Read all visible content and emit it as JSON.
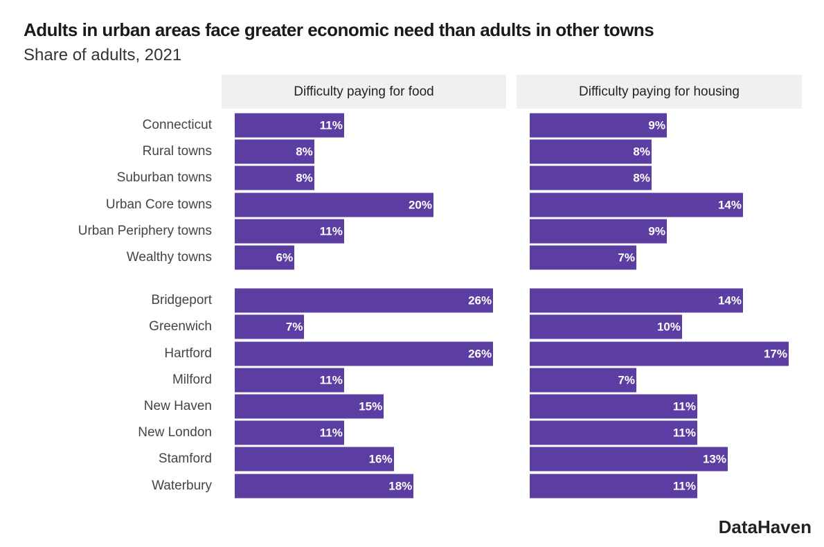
{
  "title": "Adults in urban areas face greater economic need than adults in other towns",
  "subtitle": "Share of adults, 2021",
  "logo": "DataHaven",
  "chart_data": {
    "type": "bar",
    "orientation": "horizontal",
    "bar_color": "#5c3ea3",
    "categories": [
      "Connecticut",
      "Rural towns",
      "Suburban towns",
      "Urban Core towns",
      "Urban Periphery towns",
      "Wealthy towns",
      "Bridgeport",
      "Greenwich",
      "Hartford",
      "Milford",
      "New Haven",
      "New London",
      "Stamford",
      "Waterbury"
    ],
    "panels": [
      {
        "title": "Difficulty paying for food",
        "values": [
          11,
          8,
          8,
          20,
          11,
          6,
          26,
          7,
          26,
          11,
          15,
          11,
          16,
          18
        ]
      },
      {
        "title": "Difficulty paying for housing",
        "values": [
          9,
          8,
          8,
          14,
          9,
          7,
          14,
          10,
          17,
          7,
          11,
          11,
          13,
          11
        ]
      }
    ],
    "value_format": "{v}%",
    "grid": false
  }
}
